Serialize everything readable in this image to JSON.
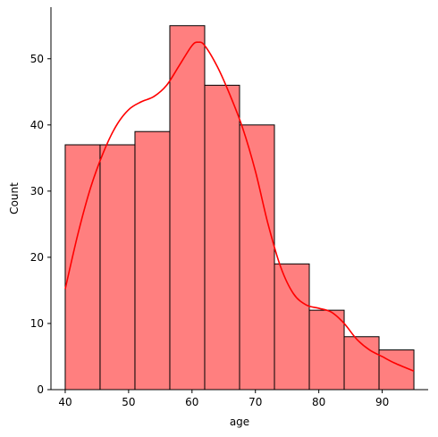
{
  "chart_data": {
    "type": "bar",
    "subtype": "histogram-with-kde",
    "title": "",
    "xlabel": "age",
    "ylabel": "Count",
    "xlim": [
      37.75,
      97.25
    ],
    "ylim": [
      0,
      57.8
    ],
    "xticks": [
      40,
      50,
      60,
      70,
      80,
      90
    ],
    "yticks": [
      0,
      10,
      20,
      30,
      40,
      50
    ],
    "grid": false,
    "bins": [
      {
        "x0": 40.0,
        "x1": 45.5,
        "count": 37
      },
      {
        "x0": 45.5,
        "x1": 51.0,
        "count": 37
      },
      {
        "x0": 51.0,
        "x1": 56.5,
        "count": 39
      },
      {
        "x0": 56.5,
        "x1": 62.0,
        "count": 55
      },
      {
        "x0": 62.0,
        "x1": 67.5,
        "count": 46
      },
      {
        "x0": 67.5,
        "x1": 73.0,
        "count": 40
      },
      {
        "x0": 73.0,
        "x1": 78.5,
        "count": 19
      },
      {
        "x0": 78.5,
        "x1": 84.0,
        "count": 12
      },
      {
        "x0": 84.0,
        "x1": 89.5,
        "count": 8
      },
      {
        "x0": 89.5,
        "x1": 95.0,
        "count": 6
      }
    ],
    "kde": {
      "x": [
        40,
        42,
        44,
        46,
        48,
        50,
        52,
        54,
        56,
        58,
        60,
        61,
        62,
        64,
        66,
        68,
        70,
        72,
        74,
        76,
        78,
        80,
        82,
        84,
        86,
        88,
        90,
        92,
        95
      ],
      "y": [
        15.2,
        23.5,
        30.5,
        35.8,
        39.8,
        42.3,
        43.5,
        44.3,
        46.0,
        49.0,
        52.0,
        52.5,
        52.0,
        48.8,
        44.5,
        39.5,
        33.0,
        25.0,
        18.5,
        14.5,
        12.8,
        12.3,
        11.7,
        10.0,
        7.6,
        6.0,
        5.0,
        4.0,
        2.8
      ]
    },
    "colors": {
      "bar_fill": "#ff7f7f",
      "bar_edge": "#000000",
      "kde_line": "#ff0000",
      "axis": "#000000"
    }
  }
}
